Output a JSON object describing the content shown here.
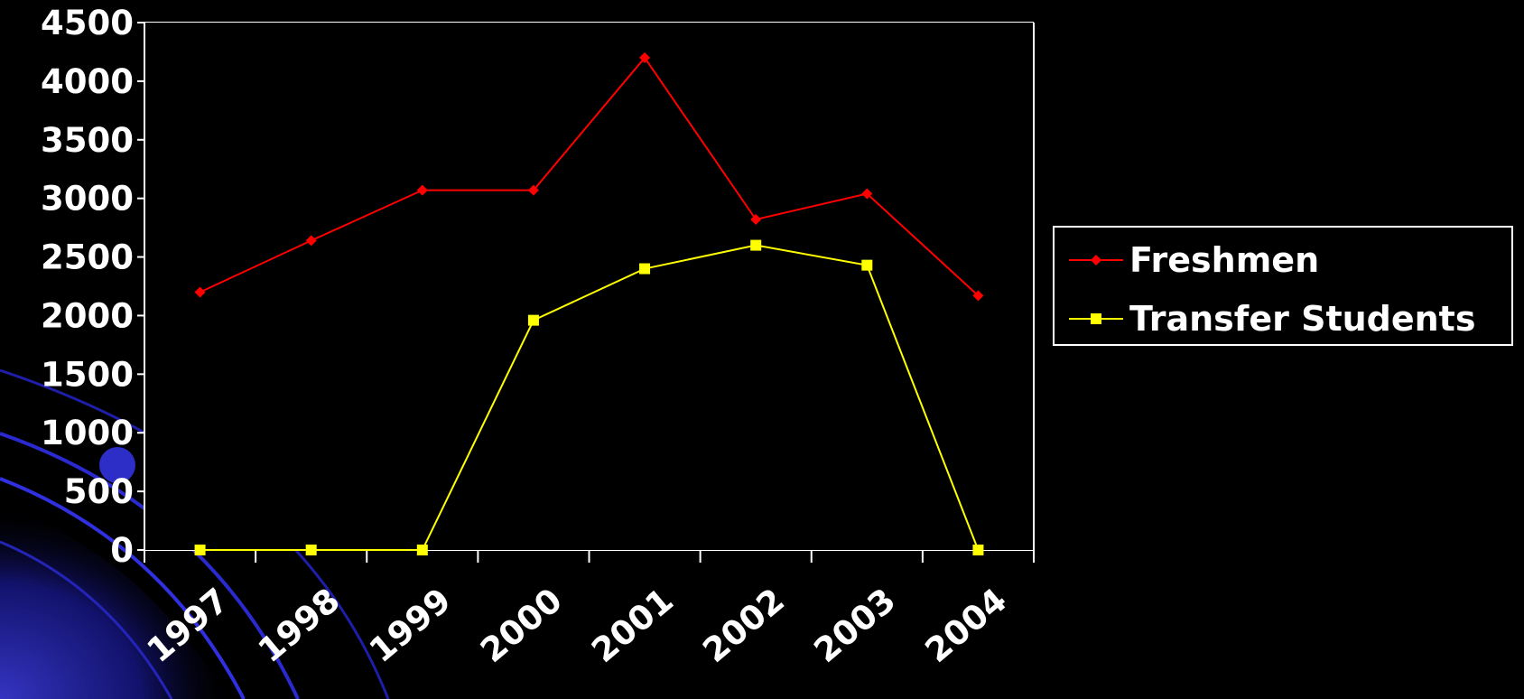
{
  "chart_data": {
    "type": "line",
    "categories": [
      "1997",
      "1998",
      "1999",
      "2000",
      "2001",
      "2002",
      "2003",
      "2004"
    ],
    "series": [
      {
        "name": "Freshmen",
        "color": "#ff0000",
        "marker": "diamond",
        "values": [
          2200,
          2640,
          3070,
          3070,
          4200,
          2820,
          3040,
          2170
        ]
      },
      {
        "name": "Transfer Students",
        "color": "#ffff00",
        "marker": "square",
        "values": [
          0,
          0,
          0,
          1960,
          2400,
          2600,
          2430,
          0
        ]
      }
    ],
    "yticks": [
      "0",
      "500",
      "1000",
      "1500",
      "2000",
      "2500",
      "3000",
      "3500",
      "4000",
      "4500"
    ],
    "ylim": [
      0,
      4500
    ],
    "grid": true,
    "legend_position": "right",
    "plot_background": "#000000",
    "grid_color": "#ffffff"
  }
}
